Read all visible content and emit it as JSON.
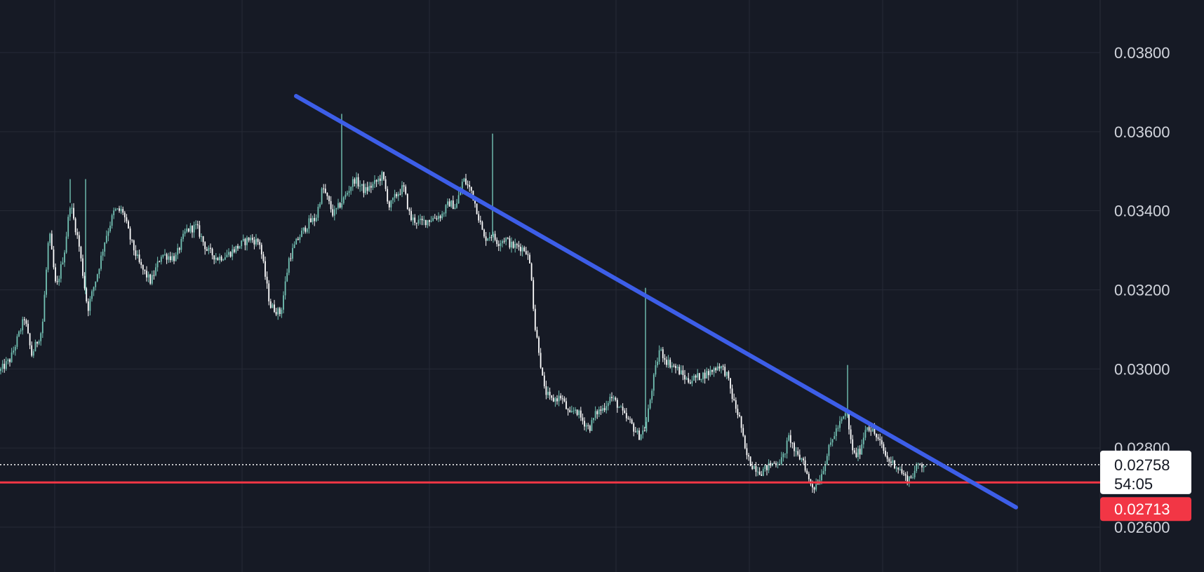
{
  "chart_data": {
    "type": "candlestick",
    "y_axis": {
      "position": "right",
      "range": [
        0.0249,
        0.0395
      ],
      "tick_values": [
        0.038,
        0.036,
        0.034,
        0.032,
        0.03,
        0.028,
        0.026
      ],
      "tick_labels": [
        "0.03800",
        "0.03600",
        "0.03400",
        "0.03200",
        "0.03000",
        "0.02800",
        "0.02600"
      ]
    },
    "grid": true,
    "colors": {
      "background": "#161a25",
      "grid": "#262a36",
      "up_candle": "#73c2b4",
      "down_candle": "#ffffff",
      "trendline": "#3d5ee8",
      "support_line": "#f23645",
      "last_price_line": "#ffffff",
      "axis_text": "#d1d4dc"
    },
    "price_path": [
      [
        0,
        0.02995
      ],
      [
        15,
        0.03025
      ],
      [
        35,
        0.0313
      ],
      [
        45,
        0.03035
      ],
      [
        60,
        0.031
      ],
      [
        70,
        0.0335
      ],
      [
        80,
        0.032
      ],
      [
        92,
        0.033
      ],
      [
        100,
        0.0342
      ],
      [
        112,
        0.0332
      ],
      [
        125,
        0.0315
      ],
      [
        140,
        0.0325
      ],
      [
        150,
        0.0333
      ],
      [
        163,
        0.034
      ],
      [
        175,
        0.034
      ],
      [
        187,
        0.0332
      ],
      [
        200,
        0.0326
      ],
      [
        215,
        0.0322
      ],
      [
        230,
        0.0329
      ],
      [
        250,
        0.0328
      ],
      [
        265,
        0.0335
      ],
      [
        280,
        0.0336
      ],
      [
        295,
        0.033
      ],
      [
        310,
        0.0328
      ],
      [
        325,
        0.0329
      ],
      [
        340,
        0.0331
      ],
      [
        355,
        0.0333
      ],
      [
        370,
        0.0332
      ],
      [
        385,
        0.0316
      ],
      [
        400,
        0.0314
      ],
      [
        412,
        0.0328
      ],
      [
        425,
        0.0333
      ],
      [
        440,
        0.0337
      ],
      [
        450,
        0.0338
      ],
      [
        460,
        0.0346
      ],
      [
        475,
        0.0339
      ],
      [
        490,
        0.0343
      ],
      [
        505,
        0.0348
      ],
      [
        520,
        0.0345
      ],
      [
        535,
        0.0347
      ],
      [
        545,
        0.0349
      ],
      [
        555,
        0.0341
      ],
      [
        565,
        0.0344
      ],
      [
        575,
        0.0346
      ],
      [
        585,
        0.0338
      ],
      [
        600,
        0.0337
      ],
      [
        615,
        0.0338
      ],
      [
        630,
        0.0339
      ],
      [
        640,
        0.0342
      ],
      [
        650,
        0.0341
      ],
      [
        660,
        0.0348
      ],
      [
        672,
        0.0345
      ],
      [
        680,
        0.034
      ],
      [
        690,
        0.0333
      ],
      [
        700,
        0.0334
      ],
      [
        710,
        0.0332
      ],
      [
        720,
        0.0333
      ],
      [
        730,
        0.0331
      ],
      [
        740,
        0.0331
      ],
      [
        750,
        0.033
      ],
      [
        757,
        0.0325
      ],
      [
        762,
        0.0311
      ],
      [
        768,
        0.0305
      ],
      [
        775,
        0.0295
      ],
      [
        785,
        0.0292
      ],
      [
        800,
        0.0293
      ],
      [
        812,
        0.0288
      ],
      [
        820,
        0.029
      ],
      [
        830,
        0.0287
      ],
      [
        840,
        0.0285
      ],
      [
        850,
        0.0289
      ],
      [
        860,
        0.029
      ],
      [
        870,
        0.0293
      ],
      [
        880,
        0.0291
      ],
      [
        890,
        0.0288
      ],
      [
        900,
        0.0286
      ],
      [
        910,
        0.0283
      ],
      [
        920,
        0.0285
      ],
      [
        930,
        0.0296
      ],
      [
        940,
        0.0305
      ],
      [
        950,
        0.0302
      ],
      [
        965,
        0.03
      ],
      [
        980,
        0.0297
      ],
      [
        995,
        0.0298
      ],
      [
        1010,
        0.0299
      ],
      [
        1025,
        0.0301
      ],
      [
        1035,
        0.0299
      ],
      [
        1045,
        0.0292
      ],
      [
        1055,
        0.0287
      ],
      [
        1062,
        0.0279
      ],
      [
        1070,
        0.0276
      ],
      [
        1085,
        0.0274
      ],
      [
        1100,
        0.0276
      ],
      [
        1115,
        0.0277
      ],
      [
        1125,
        0.0283
      ],
      [
        1135,
        0.0278
      ],
      [
        1145,
        0.0277
      ],
      [
        1152,
        0.0272
      ],
      [
        1160,
        0.027
      ],
      [
        1170,
        0.0273
      ],
      [
        1180,
        0.0279
      ],
      [
        1190,
        0.0284
      ],
      [
        1200,
        0.0287
      ],
      [
        1207,
        0.0289
      ],
      [
        1212,
        0.0282
      ],
      [
        1218,
        0.0278
      ],
      [
        1225,
        0.0279
      ],
      [
        1235,
        0.0286
      ],
      [
        1245,
        0.0284
      ],
      [
        1255,
        0.0281
      ],
      [
        1265,
        0.0277
      ],
      [
        1275,
        0.0276
      ],
      [
        1285,
        0.0274
      ],
      [
        1292,
        0.0272
      ],
      [
        1300,
        0.0273
      ],
      [
        1310,
        0.0276
      ],
      [
        1320,
        0.02758
      ]
    ],
    "spikes": [
      {
        "x": 487,
        "high": 0.03645
      },
      {
        "x": 702,
        "high": 0.03595
      },
      {
        "x": 920,
        "high": 0.03205
      },
      {
        "x": 1208,
        "high": 0.0301
      },
      {
        "x": 100,
        "high": 0.0348
      },
      {
        "x": 122,
        "high": 0.0348
      }
    ],
    "trendline": {
      "from": [
        422,
        0.0369
      ],
      "to": [
        1448,
        0.0265
      ]
    },
    "support_price": 0.02713,
    "last_price": 0.02758,
    "last_price_label": "0.02758",
    "countdown_label": "54:05",
    "support_price_label": "0.02713"
  }
}
